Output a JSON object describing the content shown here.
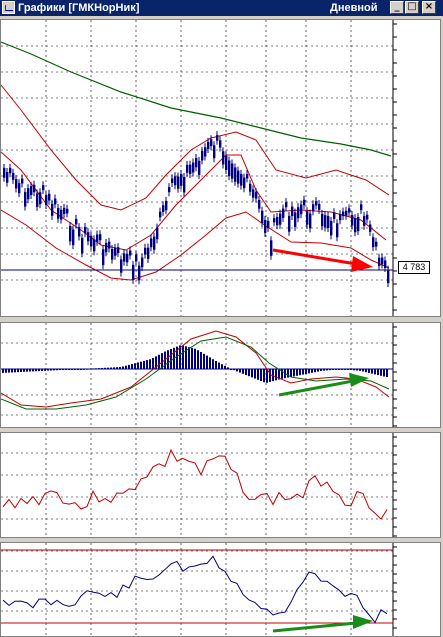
{
  "window": {
    "title": "Графики [ГМКНорНик]",
    "period": "Дневной"
  },
  "price_label": "4 783",
  "colors": {
    "candle": "#000080",
    "ma_long": "#006000",
    "bands": "#c00000",
    "hline": "#000080",
    "arrow_red": "#ff0000",
    "arrow_green": "#1a8c1a",
    "grid": "#000000"
  },
  "icons": {
    "minimize": "minimize-icon",
    "maximize": "maximize-icon",
    "close": "close-icon"
  }
}
